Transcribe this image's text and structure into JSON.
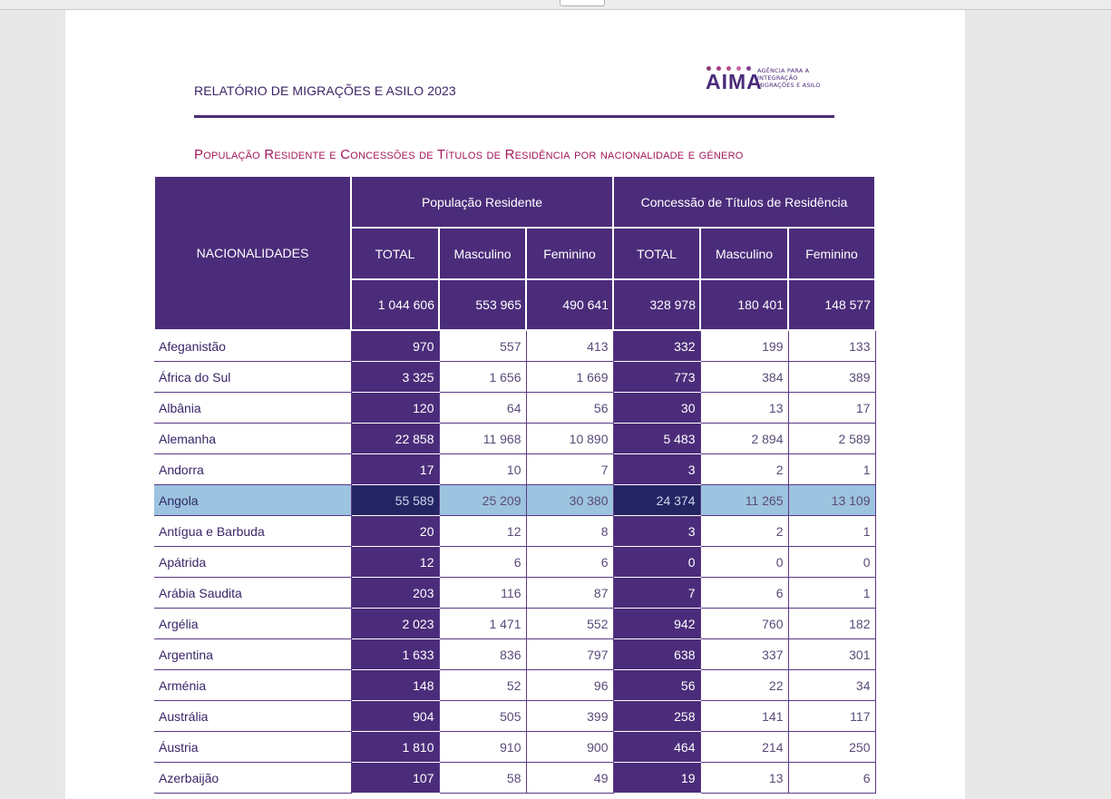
{
  "report_title": "RELATÓRIO DE MIGRAÇÕES E ASILO 2023",
  "logo": {
    "word": "AIMA",
    "tagline": [
      "AGÊNCIA PARA A",
      "INTEGRAÇÃO",
      "MIGRAÇÕES E ASILO"
    ],
    "dot_colors": [
      "#8a3a7a",
      "#a23c7c",
      "#b44d84",
      "#c866a0",
      "#7b3f8e"
    ]
  },
  "section_title": "População Residente e Concessões de Títulos de Residência por nacionalidade e género",
  "colors": {
    "header_bg": "#4b2c7a",
    "title_accent": "#a3175a",
    "highlight_row": "#9cc3df"
  },
  "table": {
    "col_nationalities": "NACIONALIDADES",
    "group_resident": "População Residente",
    "group_permits": "Concessão de Títulos de Residência",
    "sub_headers": [
      "TOTAL",
      "Masculino",
      "Feminino",
      "TOTAL",
      "Masculino",
      "Feminino"
    ],
    "totals": [
      "1 044 606",
      "553 965",
      "490 641",
      "328 978",
      "180 401",
      "148 577"
    ],
    "highlighted_row": "Angola",
    "rows": [
      {
        "name": "Afeganistão",
        "values": [
          "970",
          "557",
          "413",
          "332",
          "199",
          "133"
        ]
      },
      {
        "name": "África do Sul",
        "values": [
          "3 325",
          "1 656",
          "1 669",
          "773",
          "384",
          "389"
        ]
      },
      {
        "name": "Albânia",
        "values": [
          "120",
          "64",
          "56",
          "30",
          "13",
          "17"
        ]
      },
      {
        "name": "Alemanha",
        "values": [
          "22 858",
          "11 968",
          "10 890",
          "5 483",
          "2 894",
          "2 589"
        ]
      },
      {
        "name": "Andorra",
        "values": [
          "17",
          "10",
          "7",
          "3",
          "2",
          "1"
        ]
      },
      {
        "name": "Angola",
        "values": [
          "55 589",
          "25 209",
          "30 380",
          "24 374",
          "11 265",
          "13 109"
        ]
      },
      {
        "name": "Antígua e Barbuda",
        "values": [
          "20",
          "12",
          "8",
          "3",
          "2",
          "1"
        ]
      },
      {
        "name": "Apátrida",
        "values": [
          "12",
          "6",
          "6",
          "0",
          "0",
          "0"
        ]
      },
      {
        "name": "Arábia Saudita",
        "values": [
          "203",
          "116",
          "87",
          "7",
          "6",
          "1"
        ]
      },
      {
        "name": "Argélia",
        "values": [
          "2 023",
          "1 471",
          "552",
          "942",
          "760",
          "182"
        ]
      },
      {
        "name": "Argentina",
        "values": [
          "1 633",
          "836",
          "797",
          "638",
          "337",
          "301"
        ]
      },
      {
        "name": "Arménia",
        "values": [
          "148",
          "52",
          "96",
          "56",
          "22",
          "34"
        ]
      },
      {
        "name": "Austrália",
        "values": [
          "904",
          "505",
          "399",
          "258",
          "141",
          "117"
        ]
      },
      {
        "name": "Áustria",
        "values": [
          "1 810",
          "910",
          "900",
          "464",
          "214",
          "250"
        ]
      },
      {
        "name": "Azerbaijão",
        "values": [
          "107",
          "58",
          "49",
          "19",
          "13",
          "6"
        ]
      }
    ]
  }
}
